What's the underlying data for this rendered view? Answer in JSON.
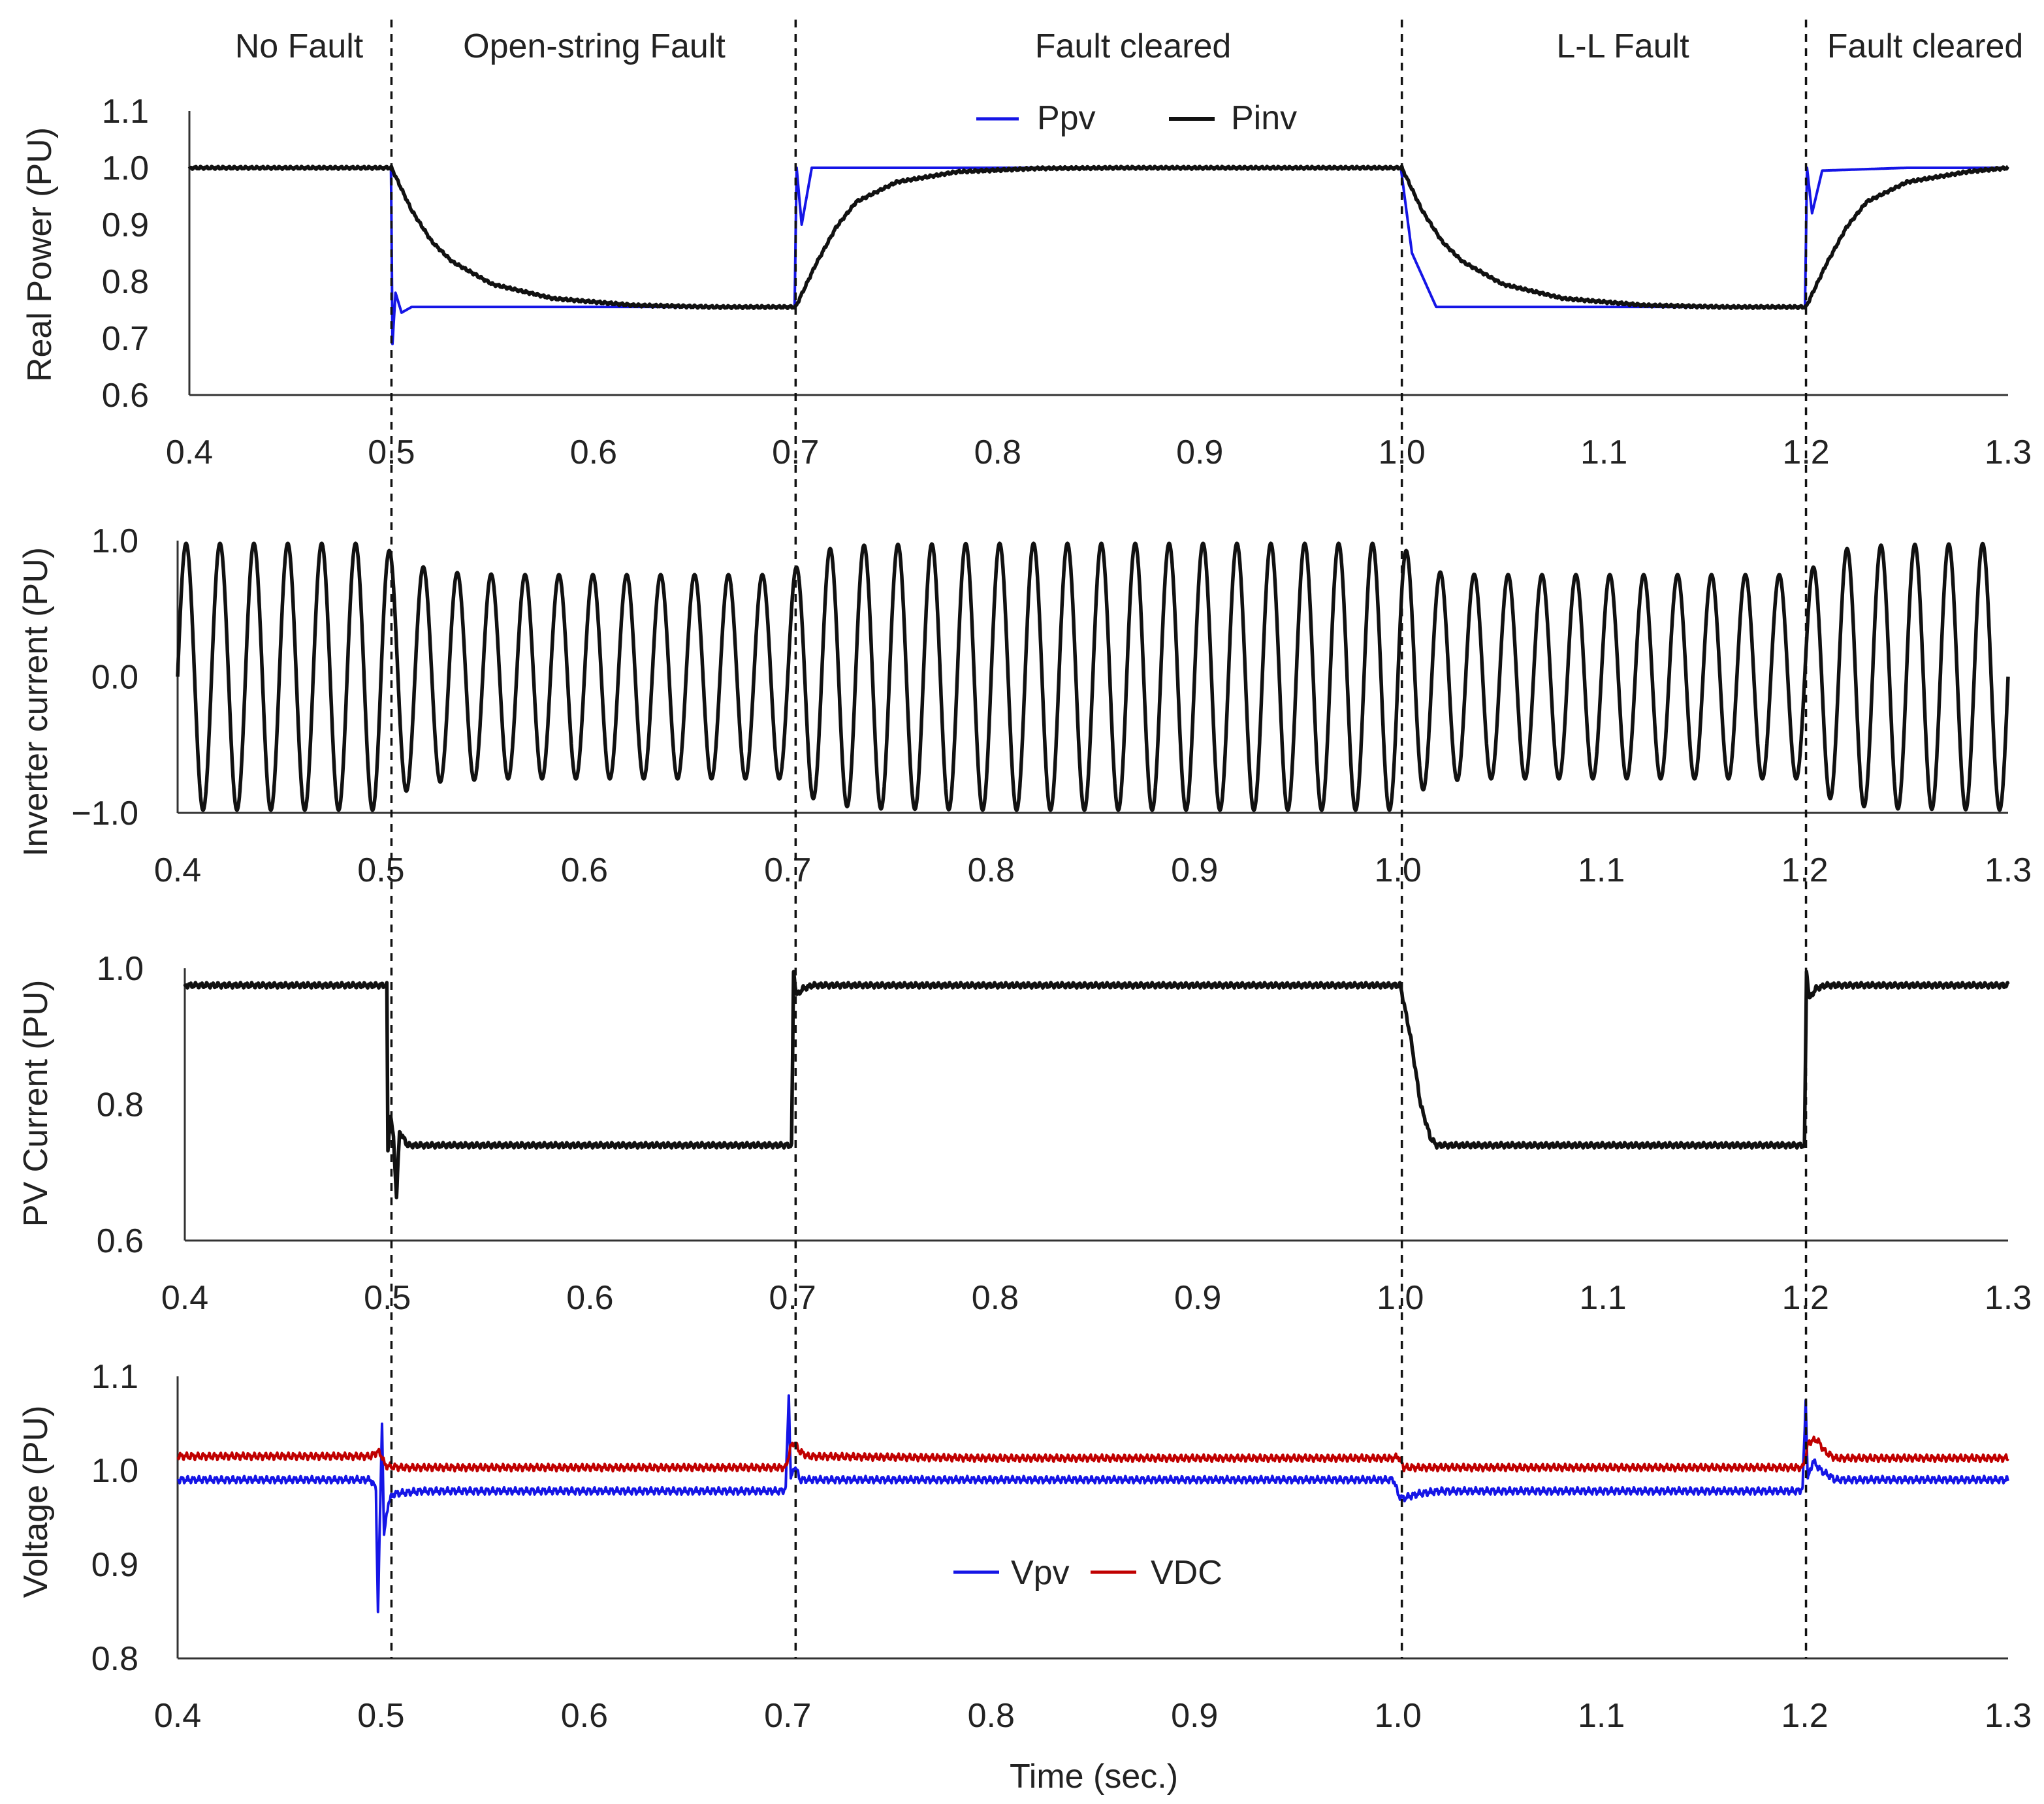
{
  "phases": [
    "No Fault",
    "Open-string Fault",
    "Fault cleared",
    "L-L Fault",
    "Fault cleared"
  ],
  "fault_times": [
    0.5,
    0.7,
    1.0,
    1.2
  ],
  "colors": {
    "blue": "#1515e6",
    "black": "#111111",
    "red": "#c00000"
  },
  "chart_data": [
    {
      "type": "line",
      "title": "",
      "ylabel": "Real Power  (PU)",
      "xlabel": "",
      "xlim": [
        0.4,
        1.3
      ],
      "ylim": [
        0.6,
        1.1
      ],
      "xticks": [
        "0.4",
        "0.5",
        "0.6",
        "0.7",
        "0.8",
        "0.9",
        "1.0",
        "1.1",
        "1.2",
        "1.3"
      ],
      "yticks": [
        "0.6",
        "0.7",
        "0.8",
        "0.9",
        "1.0",
        "1.1"
      ],
      "legend": [
        "Ppv",
        "Pinv"
      ],
      "series": [
        {
          "name": "Ppv",
          "color": "#1515e6",
          "x": [
            0.4,
            0.4998,
            0.5005,
            0.502,
            0.505,
            0.51,
            0.52,
            0.6,
            0.6995,
            0.7005,
            0.703,
            0.708,
            0.75,
            0.9,
            0.9995,
            1.005,
            1.017,
            1.1,
            1.1995,
            1.2005,
            1.203,
            1.208,
            1.25,
            1.3
          ],
          "values": [
            1.0,
            1.0,
            0.69,
            0.78,
            0.745,
            0.755,
            0.755,
            0.755,
            0.755,
            1.0,
            0.9,
            1.0,
            1.0,
            1.0,
            1.0,
            0.85,
            0.755,
            0.755,
            0.755,
            1.0,
            0.92,
            0.995,
            1.0,
            1.0
          ]
        },
        {
          "name": "Pinv",
          "color": "#111111",
          "x": [
            0.4,
            0.5,
            0.51,
            0.52,
            0.53,
            0.55,
            0.58,
            0.62,
            0.66,
            0.7,
            0.71,
            0.72,
            0.73,
            0.75,
            0.78,
            0.82,
            0.86,
            0.9,
            1.0,
            1.01,
            1.02,
            1.03,
            1.05,
            1.08,
            1.12,
            1.16,
            1.2,
            1.21,
            1.22,
            1.23,
            1.25,
            1.28,
            1.3
          ],
          "values": [
            1.0,
            1.0,
            0.925,
            0.87,
            0.835,
            0.795,
            0.77,
            0.758,
            0.755,
            0.755,
            0.83,
            0.895,
            0.94,
            0.975,
            0.993,
            0.999,
            1.0,
            1.0,
            1.0,
            0.925,
            0.87,
            0.835,
            0.795,
            0.77,
            0.758,
            0.755,
            0.755,
            0.83,
            0.895,
            0.94,
            0.975,
            0.993,
            1.0
          ]
        }
      ]
    },
    {
      "type": "line",
      "title": "",
      "ylabel": "Inverter current  (PU)",
      "xlabel": "",
      "xlim": [
        0.4,
        1.3
      ],
      "ylim": [
        -1.0,
        1.0
      ],
      "xticks": [
        "0.4",
        "0.5",
        "0.6",
        "0.7",
        "0.8",
        "0.9",
        "1.0",
        "1.1",
        "1.2",
        "1.3"
      ],
      "yticks": [
        "−1.0",
        "0.0",
        "1.0"
      ],
      "frequency_hz": 60,
      "series": [
        {
          "name": "Inverter current",
          "color": "#111111",
          "envelope_x": [
            0.4,
            0.5,
            0.51,
            0.53,
            0.56,
            0.6,
            0.7,
            0.71,
            0.72,
            0.74,
            0.8,
            1.0,
            1.01,
            1.02,
            1.04,
            1.1,
            1.2,
            1.21,
            1.22,
            1.24,
            1.3
          ],
          "envelope_amplitude": [
            0.98,
            0.98,
            0.85,
            0.77,
            0.75,
            0.75,
            0.75,
            0.88,
            0.94,
            0.97,
            0.98,
            0.98,
            0.85,
            0.77,
            0.75,
            0.75,
            0.75,
            0.88,
            0.94,
            0.97,
            0.98
          ]
        }
      ]
    },
    {
      "type": "line",
      "title": "",
      "ylabel": "PV Current  (PU)",
      "xlabel": "",
      "xlim": [
        0.4,
        1.3
      ],
      "ylim": [
        0.6,
        1.0
      ],
      "xticks": [
        "0.4",
        "0.5",
        "0.6",
        "0.7",
        "0.8",
        "0.9",
        "1.0",
        "1.1",
        "1.2",
        "1.3"
      ],
      "yticks": [
        "0.6",
        "0.8",
        "1.0"
      ],
      "series": [
        {
          "name": "PV Current",
          "color": "#111111",
          "x": [
            0.4,
            0.4998,
            0.5002,
            0.5015,
            0.503,
            0.5045,
            0.506,
            0.51,
            0.6,
            0.6995,
            0.7005,
            0.702,
            0.705,
            0.71,
            0.75,
            0.9,
            1.0,
            1.005,
            1.01,
            1.015,
            1.018,
            1.1,
            1.1995,
            1.2005,
            1.202,
            1.205,
            1.21,
            1.25,
            1.3
          ],
          "values": [
            0.975,
            0.975,
            0.73,
            0.785,
            0.75,
            0.665,
            0.76,
            0.74,
            0.74,
            0.74,
            0.995,
            0.96,
            0.97,
            0.975,
            0.975,
            0.975,
            0.975,
            0.9,
            0.8,
            0.75,
            0.74,
            0.74,
            0.74,
            0.995,
            0.955,
            0.97,
            0.975,
            0.975,
            0.975
          ]
        }
      ]
    },
    {
      "type": "line",
      "title": "",
      "ylabel": "Voltage  (PU)",
      "xlabel": "Time (sec.)",
      "xlim": [
        0.4,
        1.3
      ],
      "ylim": [
        0.8,
        1.1
      ],
      "xticks": [
        "0.4",
        "0.5",
        "0.6",
        "0.7",
        "0.8",
        "0.9",
        "1.0",
        "1.1",
        "1.2",
        "1.3"
      ],
      "yticks": [
        "0.8",
        "0.9",
        "1.0",
        "1.1"
      ],
      "legend": [
        "Vpv",
        "VDC"
      ],
      "series": [
        {
          "name": "Vpv",
          "color": "#1515e6",
          "x": [
            0.4,
            0.495,
            0.4975,
            0.4985,
            0.5005,
            0.5015,
            0.5035,
            0.506,
            0.52,
            0.6,
            0.6975,
            0.699,
            0.7005,
            0.7015,
            0.7035,
            0.706,
            0.71,
            0.8,
            0.9,
            0.998,
            1.0,
            1.002,
            1.01,
            1.02,
            1.1,
            1.1975,
            1.199,
            1.2005,
            1.2015,
            1.204,
            1.208,
            1.215,
            1.3
          ],
          "values": [
            0.99,
            0.99,
            0.98,
            0.85,
            1.05,
            0.93,
            0.965,
            0.975,
            0.978,
            0.978,
            0.978,
            0.982,
            1.08,
            0.99,
            1.005,
            0.99,
            0.99,
            0.99,
            0.99,
            0.99,
            0.975,
            0.97,
            0.975,
            0.978,
            0.978,
            0.978,
            0.982,
            1.075,
            0.99,
            1.01,
            1.0,
            0.99,
            0.99
          ]
        },
        {
          "name": "VDC",
          "color": "#c00000",
          "x": [
            0.4,
            0.495,
            0.4985,
            0.5005,
            0.502,
            0.51,
            0.6,
            0.699,
            0.7015,
            0.703,
            0.706,
            0.71,
            0.8,
            0.9,
            0.998,
            1.0,
            1.003,
            1.01,
            1.1,
            1.199,
            1.202,
            1.206,
            1.21,
            1.215,
            1.3
          ],
          "values": [
            1.015,
            1.015,
            1.02,
            1.015,
            1.005,
            1.003,
            1.003,
            1.003,
            1.025,
            1.03,
            1.02,
            1.015,
            1.013,
            1.013,
            1.013,
            1.015,
            1.003,
            1.003,
            1.003,
            1.003,
            1.03,
            1.033,
            1.02,
            1.013,
            1.013
          ]
        }
      ]
    }
  ]
}
